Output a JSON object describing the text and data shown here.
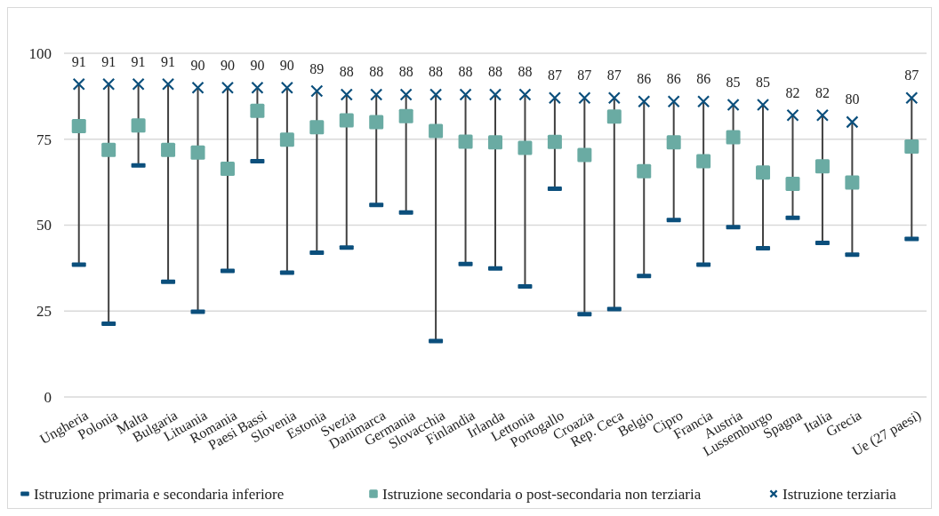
{
  "chart_data": {
    "type": "scatter",
    "categories": [
      "Ungheria",
      "Polonia",
      "Malta",
      "Bulgaria",
      "Lituania",
      "Romania",
      "Paesi Bassi",
      "Slovenia",
      "Estonia",
      "Svezia",
      "Danimarca",
      "Germania",
      "Slovacchia",
      "Finlandia",
      "Irlanda",
      "Lettonia",
      "Portogallo",
      "Croazia",
      "Rep. Ceca",
      "Belgio",
      "Cipro",
      "Francia",
      "Austria",
      "Lussemburgo",
      "Spagna",
      "Italia",
      "Grecia",
      null,
      "Ue (27 paesi)"
    ],
    "series": [
      {
        "name": "Istruzione primaria e secondaria inferiore",
        "color": "#0b4f7c",
        "values": [
          38.5,
          21.3,
          67.4,
          33.5,
          24.8,
          36.7,
          68.6,
          36.2,
          42.0,
          43.5,
          55.9,
          53.7,
          16.3,
          38.7,
          37.4,
          32.2,
          60.6,
          24.1,
          25.6,
          35.2,
          51.5,
          38.5,
          49.4,
          43.3,
          52.1,
          44.8,
          41.4,
          null,
          46.0
        ]
      },
      {
        "name": "Istruzione secondaria o post-secondaria non terziaria",
        "color": "#6aaba3",
        "marker": "square",
        "values": [
          78.8,
          71.9,
          79.0,
          71.9,
          71.1,
          66.4,
          83.3,
          74.9,
          78.5,
          80.5,
          80.0,
          81.7,
          77.4,
          74.3,
          74.1,
          72.5,
          74.2,
          70.4,
          81.6,
          65.7,
          74.1,
          68.6,
          75.6,
          65.3,
          62.0,
          67.1,
          62.4,
          null,
          72.9
        ]
      },
      {
        "name": "Istruzione terziaria",
        "color": "#0b4f7c",
        "marker": "cross",
        "values": [
          91,
          91,
          91,
          91,
          90,
          90,
          90,
          90,
          89,
          88,
          88,
          88,
          88,
          88,
          88,
          88,
          87,
          87,
          87,
          86,
          86,
          86,
          85,
          85,
          82,
          82,
          80,
          null,
          87
        ],
        "value_labels": [
          "91",
          "91",
          "91",
          "91",
          "90",
          "90",
          "90",
          "90",
          "89",
          "88",
          "88",
          "88",
          "88",
          "88",
          "88",
          "88",
          "87",
          "87",
          "87",
          "86",
          "86",
          "86",
          "85",
          "85",
          "82",
          "82",
          "80",
          null,
          "87"
        ]
      }
    ],
    "ylim": [
      0,
      100
    ],
    "yticks": [
      0,
      25,
      50,
      75,
      100
    ],
    "grid": "y",
    "legend": "bottom"
  }
}
